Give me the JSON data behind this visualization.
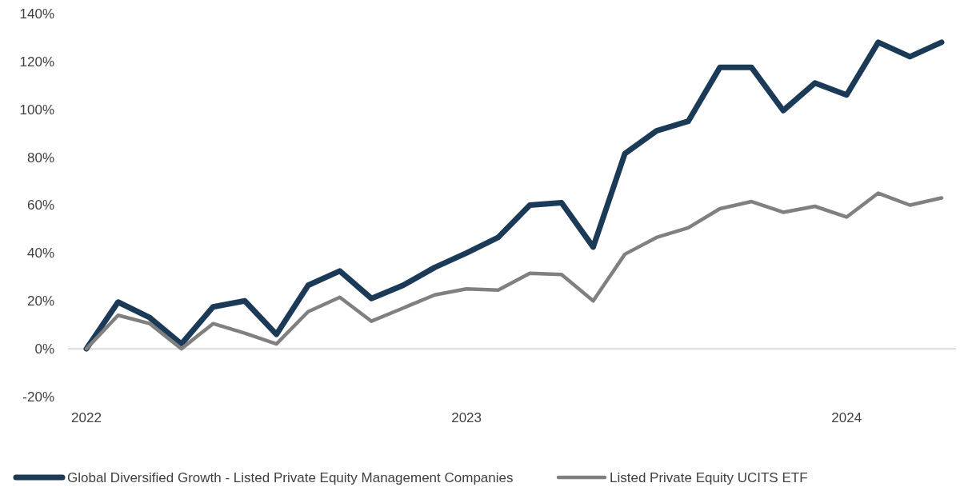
{
  "chart_data": {
    "type": "line",
    "categories": [
      "2022",
      null,
      null,
      null,
      null,
      null,
      null,
      null,
      null,
      null,
      null,
      null,
      "2023",
      null,
      null,
      null,
      null,
      null,
      null,
      null,
      null,
      null,
      null,
      null,
      "2024",
      null,
      null,
      null
    ],
    "ylim": [
      -20,
      140
    ],
    "yticks": [
      {
        "value": -20,
        "label": "-20%"
      },
      {
        "value": 0,
        "label": "0%"
      },
      {
        "value": 20,
        "label": "20%"
      },
      {
        "value": 40,
        "label": "40%"
      },
      {
        "value": 60,
        "label": "60%"
      },
      {
        "value": 80,
        "label": "80%"
      },
      {
        "value": 100,
        "label": "100%"
      },
      {
        "value": 120,
        "label": "120%"
      },
      {
        "value": 140,
        "label": "140%"
      }
    ],
    "legend": "bottom",
    "marker": "none",
    "line_style": "solid",
    "series": [
      {
        "name": "Global Diversified Growth - Listed Private Equity Management Companies",
        "color": "#1b3a57",
        "values": [
          0,
          19.5,
          13,
          2,
          17.5,
          20,
          6,
          26.5,
          32.5,
          21,
          26.5,
          34,
          40,
          46.5,
          60,
          61,
          42.5,
          81.5,
          91,
          95,
          117.5,
          117.5,
          99.5,
          111,
          106,
          128,
          122,
          128
        ]
      },
      {
        "name": "Listed Private Equity UCITS ETF",
        "color": "#808080",
        "values": [
          0,
          14,
          10.5,
          0,
          10.5,
          6.5,
          2,
          15.5,
          21.5,
          11.5,
          17,
          22.5,
          25,
          24.5,
          31.5,
          31,
          20,
          39.5,
          46.5,
          50.5,
          58.5,
          61.5,
          57,
          59.5,
          55,
          65,
          60,
          63
        ]
      }
    ]
  }
}
